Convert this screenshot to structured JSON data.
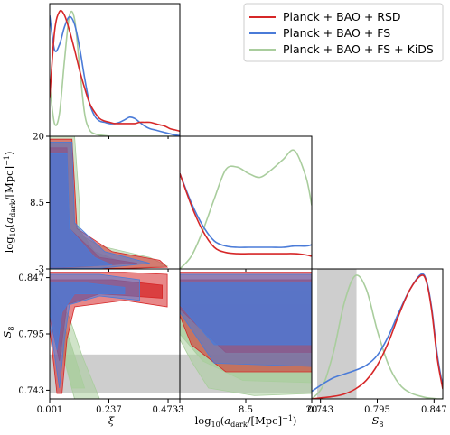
{
  "chart_data": {
    "type": "triangle-corner-plot",
    "parameters": [
      {
        "key": "xi",
        "label": "ξ"
      },
      {
        "key": "log_a_dark",
        "label": "log10(a_dark/[Mpc]^-1)"
      },
      {
        "key": "S8",
        "label": "S8"
      }
    ],
    "series": [
      {
        "name": "Planck + BAO + RSD",
        "color": "#d62728"
      },
      {
        "name": "Planck + BAO + FS",
        "color": "#4a7bd8"
      },
      {
        "name": "Planck + BAO + FS + KiDS",
        "color": "#a9cd9d"
      }
    ],
    "legend_placement": "top-right",
    "axes": {
      "xi": {
        "range": [
          0.001,
          0.52
        ],
        "ticks": [
          "0.001",
          "0.237",
          "0.4733"
        ]
      },
      "log_a_dark": {
        "range": [
          -3,
          20
        ],
        "ticks": [
          "-3",
          "8.5",
          "20"
        ]
      },
      "S8": {
        "range": [
          0.735,
          0.855
        ],
        "ticks": [
          "0.743",
          "0.795",
          "0.847"
        ]
      }
    },
    "band_S8": {
      "range": [
        0.74,
        0.776
      ],
      "color": "#bdbdbd"
    },
    "diagonal_1d": {
      "xi": {
        "x": [
          0.001,
          0.02,
          0.04,
          0.06,
          0.08,
          0.1,
          0.12,
          0.14,
          0.16,
          0.18,
          0.2,
          0.22,
          0.24,
          0.26,
          0.28,
          0.3,
          0.32,
          0.34,
          0.36,
          0.38,
          0.4,
          0.42,
          0.44,
          0.46,
          0.48,
          0.5,
          0.52
        ],
        "Planck + BAO + RSD": [
          0.3,
          0.82,
          0.98,
          0.95,
          0.83,
          0.68,
          0.52,
          0.38,
          0.26,
          0.19,
          0.14,
          0.12,
          0.11,
          0.1,
          0.1,
          0.1,
          0.1,
          0.1,
          0.11,
          0.11,
          0.11,
          0.1,
          0.09,
          0.08,
          0.06,
          0.05,
          0.04
        ],
        "Planck + BAO + FS": [
          0.95,
          0.68,
          0.72,
          0.86,
          0.94,
          0.88,
          0.7,
          0.46,
          0.26,
          0.16,
          0.12,
          0.11,
          0.1,
          0.1,
          0.11,
          0.13,
          0.15,
          0.14,
          0.11,
          0.08,
          0.06,
          0.05,
          0.04,
          0.03,
          0.02,
          0.01,
          0.005
        ],
        "Planck + BAO + FS + KiDS": [
          0.4,
          0.1,
          0.18,
          0.6,
          0.95,
          0.92,
          0.55,
          0.18,
          0.05,
          0.02,
          0.01,
          0.005,
          0.0,
          0.0,
          0.0,
          0.0,
          0.0,
          0.0,
          0.0,
          0.0,
          0.0,
          0.0,
          0.0,
          0.0,
          0.0,
          0.0,
          0.0
        ]
      },
      "log_a_dark": {
        "x": [
          -3,
          -1,
          1,
          3,
          5,
          7,
          9,
          11,
          13,
          15,
          17,
          19,
          20
        ],
        "Planck + BAO + RSD": [
          0.75,
          0.5,
          0.3,
          0.17,
          0.13,
          0.12,
          0.12,
          0.12,
          0.12,
          0.12,
          0.12,
          0.11,
          0.1
        ],
        "Planck + BAO + FS": [
          0.75,
          0.52,
          0.34,
          0.22,
          0.18,
          0.17,
          0.17,
          0.17,
          0.17,
          0.17,
          0.18,
          0.18,
          0.19
        ],
        "Planck + BAO + FS + KiDS": [
          0.0,
          0.1,
          0.3,
          0.55,
          0.78,
          0.8,
          0.75,
          0.72,
          0.78,
          0.86,
          0.93,
          0.72,
          0.5
        ]
      },
      "S8": {
        "x": [
          0.735,
          0.745,
          0.755,
          0.765,
          0.775,
          0.785,
          0.795,
          0.805,
          0.815,
          0.825,
          0.835,
          0.84,
          0.845,
          0.85,
          0.855
        ],
        "Planck + BAO + RSD": [
          0.0,
          0.01,
          0.02,
          0.04,
          0.08,
          0.15,
          0.27,
          0.45,
          0.68,
          0.88,
          0.99,
          0.94,
          0.7,
          0.32,
          0.08
        ],
        "Planck + BAO + FS": [
          0.06,
          0.12,
          0.17,
          0.2,
          0.23,
          0.27,
          0.35,
          0.5,
          0.7,
          0.88,
          1.0,
          0.95,
          0.72,
          0.35,
          0.1
        ],
        "Planck + BAO + FS + KiDS": [
          0.0,
          0.1,
          0.38,
          0.78,
          0.99,
          0.88,
          0.55,
          0.28,
          0.12,
          0.05,
          0.02,
          0.01,
          0.005,
          0.0,
          0.0
        ]
      }
    },
    "contours_2d": {
      "xi_vs_log_a_dark": [
        {
          "series": "Planck + BAO + FS + KiDS",
          "outer": [
            [
              0.001,
              20
            ],
            [
              0.1,
              20
            ],
            [
              0.12,
              8
            ],
            [
              0.12,
              3
            ],
            [
              0.2,
              1
            ],
            [
              0.4,
              -1
            ],
            [
              0.47,
              -2.5
            ],
            [
              0.3,
              -3
            ],
            [
              0.001,
              -3
            ]
          ],
          "inner": [
            [
              0.001,
              19
            ],
            [
              0.09,
              19
            ],
            [
              0.1,
              5
            ],
            [
              0.18,
              0
            ],
            [
              0.3,
              -2
            ],
            [
              0.05,
              -3
            ],
            [
              0.001,
              -3
            ]
          ],
          "color": "#a9cd9d"
        },
        {
          "series": "Planck + BAO + RSD",
          "outer": [
            [
              0.001,
              19.5
            ],
            [
              0.09,
              19.5
            ],
            [
              0.11,
              4
            ],
            [
              0.25,
              0
            ],
            [
              0.44,
              -1.5
            ],
            [
              0.47,
              -2.7
            ],
            [
              0.3,
              -2.9
            ],
            [
              0.001,
              -2.9
            ]
          ],
          "inner": [
            [
              0.001,
              18
            ],
            [
              0.07,
              18
            ],
            [
              0.08,
              4
            ],
            [
              0.2,
              -1
            ],
            [
              0.35,
              -2
            ],
            [
              0.05,
              -2.8
            ],
            [
              0.001,
              -2.8
            ]
          ],
          "color": "#d62728"
        },
        {
          "series": "Planck + BAO + FS",
          "outer": [
            [
              0.001,
              19
            ],
            [
              0.09,
              19
            ],
            [
              0.1,
              5
            ],
            [
              0.22,
              0
            ],
            [
              0.4,
              -2
            ],
            [
              0.2,
              -2.9
            ],
            [
              0.001,
              -2.9
            ]
          ],
          "inner": [
            [
              0.001,
              17
            ],
            [
              0.07,
              17
            ],
            [
              0.08,
              4
            ],
            [
              0.18,
              -1
            ],
            [
              0.25,
              -2.3
            ],
            [
              0.05,
              -2.7
            ],
            [
              0.001,
              -2.7
            ]
          ],
          "color": "#4a7bd8"
        }
      ],
      "xi_vs_S8": [
        {
          "series": "Planck + BAO + FS + KiDS",
          "outer": [
            [
              0.001,
              0.822
            ],
            [
              0.02,
              0.805
            ],
            [
              0.06,
              0.77
            ],
            [
              0.1,
              0.735
            ],
            [
              0.2,
              0.735
            ],
            [
              0.13,
              0.775
            ],
            [
              0.08,
              0.81
            ],
            [
              0.001,
              0.842
            ]
          ],
          "inner": [
            [
              0.001,
              0.815
            ],
            [
              0.04,
              0.79
            ],
            [
              0.09,
              0.745
            ],
            [
              0.14,
              0.745
            ],
            [
              0.08,
              0.79
            ],
            [
              0.001,
              0.83
            ]
          ],
          "color": "#a9cd9d"
        },
        {
          "series": "Planck + BAO + RSD",
          "outer": [
            [
              0.001,
              0.852
            ],
            [
              0.3,
              0.852
            ],
            [
              0.47,
              0.85
            ],
            [
              0.47,
              0.82
            ],
            [
              0.3,
              0.826
            ],
            [
              0.1,
              0.82
            ],
            [
              0.07,
              0.79
            ],
            [
              0.05,
              0.74
            ],
            [
              0.03,
              0.74
            ],
            [
              0.001,
              0.8
            ]
          ],
          "inner": [
            [
              0.001,
              0.845
            ],
            [
              0.25,
              0.845
            ],
            [
              0.45,
              0.84
            ],
            [
              0.45,
              0.828
            ],
            [
              0.2,
              0.832
            ],
            [
              0.07,
              0.822
            ],
            [
              0.04,
              0.77
            ],
            [
              0.001,
              0.81
            ]
          ],
          "color": "#d62728"
        },
        {
          "series": "Planck + BAO + FS",
          "outer": [
            [
              0.001,
              0.85
            ],
            [
              0.2,
              0.85
            ],
            [
              0.36,
              0.845
            ],
            [
              0.36,
              0.826
            ],
            [
              0.2,
              0.83
            ],
            [
              0.08,
              0.822
            ],
            [
              0.06,
              0.79
            ],
            [
              0.04,
              0.745
            ],
            [
              0.001,
              0.805
            ]
          ],
          "inner": [
            [
              0.001,
              0.842
            ],
            [
              0.15,
              0.842
            ],
            [
              0.3,
              0.838
            ],
            [
              0.3,
              0.832
            ],
            [
              0.1,
              0.832
            ],
            [
              0.05,
              0.815
            ],
            [
              0.03,
              0.78
            ],
            [
              0.001,
              0.815
            ]
          ],
          "color": "#4a7bd8"
        }
      ],
      "log_a_dark_vs_S8": [
        {
          "series": "Planck + BAO + FS + KiDS",
          "outer": [
            [
              -3,
              0.835
            ],
            [
              20,
              0.835
            ],
            [
              20,
              0.74
            ],
            [
              10,
              0.738
            ],
            [
              2,
              0.745
            ],
            [
              -1,
              0.77
            ],
            [
              -3,
              0.79
            ]
          ],
          "inner": [
            [
              -3,
              0.822
            ],
            [
              20,
              0.822
            ],
            [
              20,
              0.75
            ],
            [
              8,
              0.752
            ],
            [
              1,
              0.77
            ],
            [
              -3,
              0.795
            ]
          ],
          "color": "#a9cd9d"
        },
        {
          "series": "Planck + BAO + RSD",
          "outer": [
            [
              -3,
              0.852
            ],
            [
              20,
              0.852
            ],
            [
              20,
              0.76
            ],
            [
              5,
              0.76
            ],
            [
              -1,
              0.785
            ],
            [
              -3,
              0.812
            ]
          ],
          "inner": [
            [
              -3,
              0.845
            ],
            [
              20,
              0.845
            ],
            [
              20,
              0.778
            ],
            [
              5,
              0.778
            ],
            [
              -3,
              0.818
            ]
          ],
          "color": "#d62728"
        },
        {
          "series": "Planck + BAO + FS",
          "outer": [
            [
              -3,
              0.85
            ],
            [
              20,
              0.85
            ],
            [
              20,
              0.765
            ],
            [
              3,
              0.768
            ],
            [
              -3,
              0.815
            ]
          ],
          "inner": [
            [
              -3,
              0.842
            ],
            [
              20,
              0.842
            ],
            [
              20,
              0.785
            ],
            [
              3,
              0.785
            ],
            [
              -3,
              0.822
            ]
          ],
          "color": "#4a7bd8"
        }
      ]
    }
  }
}
